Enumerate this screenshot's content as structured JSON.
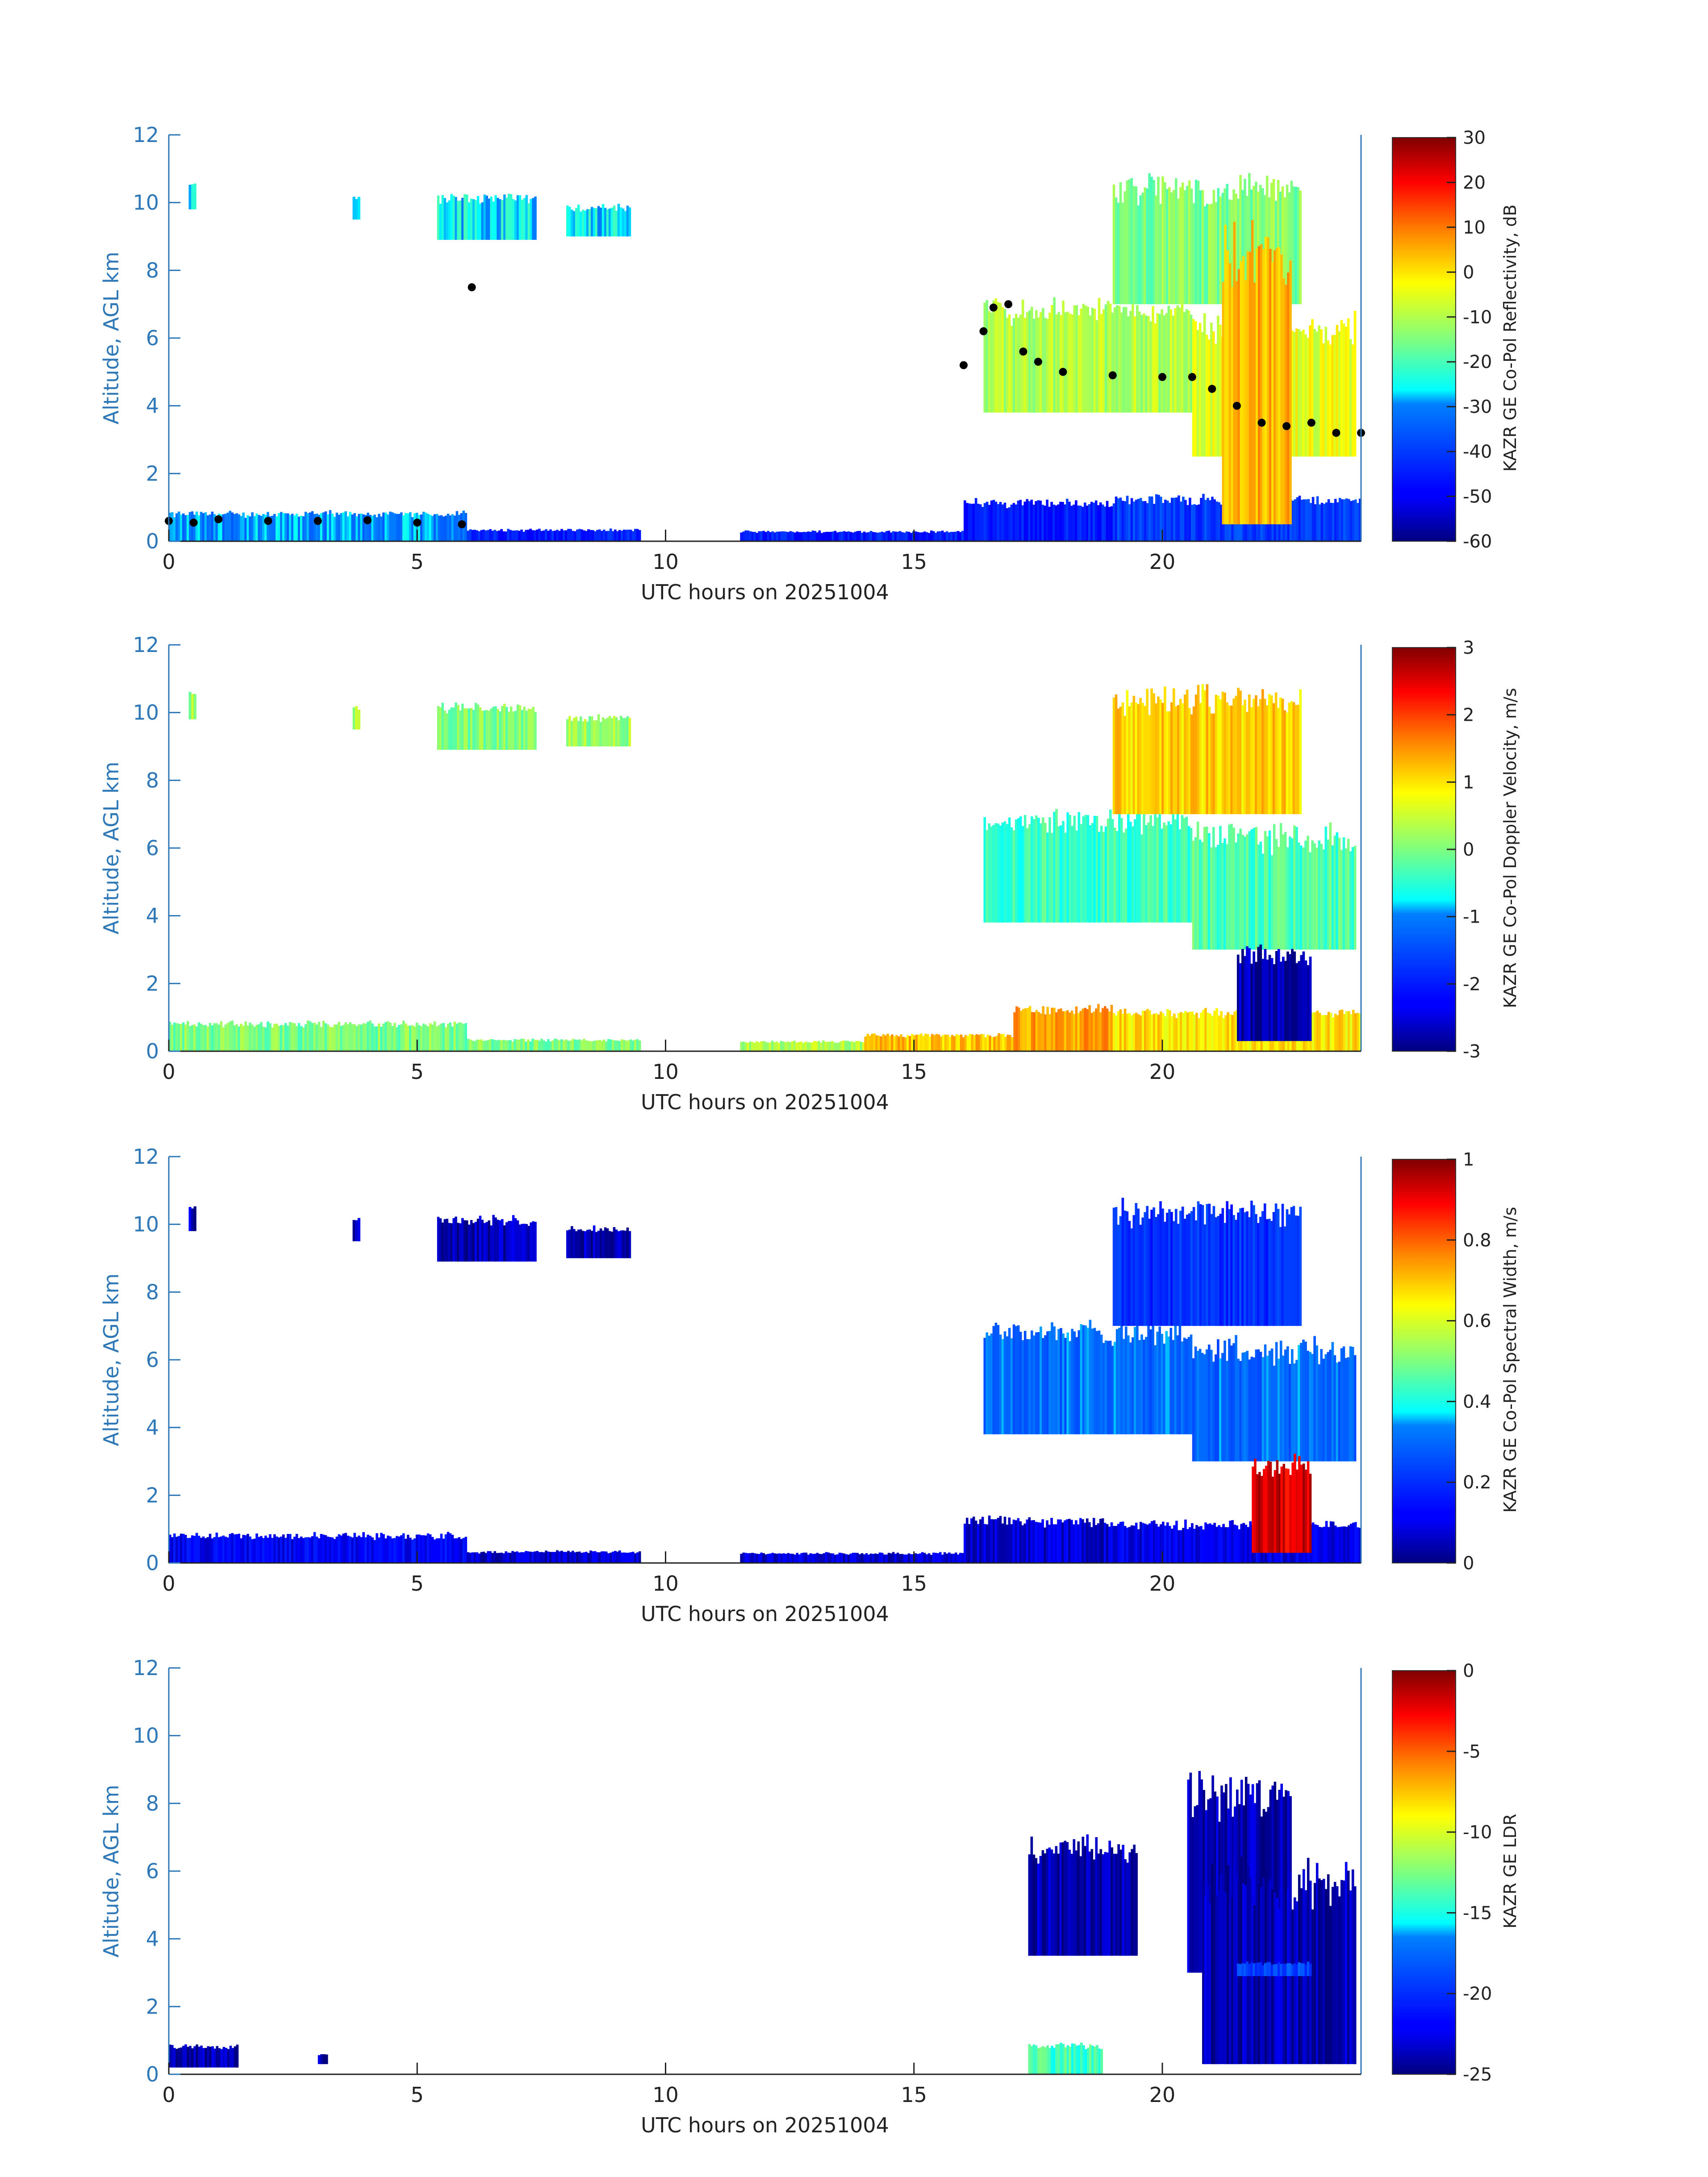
{
  "chart_data": [
    {
      "type": "heatmap",
      "variable": "reflectivity",
      "xlabel": "UTC hours on 20251004",
      "ylabel": "Altitude, AGL km",
      "xlim": [
        0,
        24
      ],
      "ylim": [
        0,
        12
      ],
      "xticks": [
        "0",
        "5",
        "10",
        "15",
        "20"
      ],
      "yticks": [
        "0",
        "2",
        "4",
        "6",
        "8",
        "10",
        "12"
      ],
      "colorbar_label": "KAZR GE Co-Pol Reflectivity, dB",
      "clim": [
        -60,
        30
      ],
      "colorbar_ticks": [
        "30",
        "20",
        "10",
        "0",
        "-10",
        "-20",
        "-30",
        "-40",
        "-50",
        "-60"
      ],
      "colormap": "jet",
      "regions": [
        {
          "x": [
            0,
            6
          ],
          "y": [
            0,
            0.85
          ],
          "value": -30
        },
        {
          "x": [
            6,
            9.5
          ],
          "y": [
            0,
            0.35
          ],
          "value": -45
        },
        {
          "x": [
            11.5,
            16
          ],
          "y": [
            0,
            0.3
          ],
          "value": -45
        },
        {
          "x": [
            16,
            19
          ],
          "y": [
            0,
            1.2
          ],
          "value": -45
        },
        {
          "x": [
            19,
            24
          ],
          "y": [
            0,
            1.3
          ],
          "value": -40
        },
        {
          "x": [
            0.4,
            0.55
          ],
          "y": [
            9.8,
            10.6
          ],
          "value": -25
        },
        {
          "x": [
            3.7,
            3.85
          ],
          "y": [
            9.5,
            10.2
          ],
          "value": -25
        },
        {
          "x": [
            5.4,
            7.4
          ],
          "y": [
            8.9,
            10.2
          ],
          "value": -25
        },
        {
          "x": [
            8.0,
            9.3
          ],
          "y": [
            9.0,
            9.9
          ],
          "value": -25
        },
        {
          "x": [
            16.4,
            20.6
          ],
          "y": [
            3.8,
            7.0
          ],
          "value": -10
        },
        {
          "x": [
            20.6,
            23.9
          ],
          "y": [
            2.5,
            6.5
          ],
          "value": -5
        },
        {
          "x": [
            19.0,
            22.8
          ],
          "y": [
            7.0,
            10.6
          ],
          "value": -15
        },
        {
          "x": [
            21.2,
            22.6
          ],
          "y": [
            0.5,
            9.0
          ],
          "value": 5
        }
      ],
      "overlay_points": [
        {
          "x": 0.0,
          "y": 0.6
        },
        {
          "x": 0.5,
          "y": 0.55
        },
        {
          "x": 1.0,
          "y": 0.65
        },
        {
          "x": 2.0,
          "y": 0.6
        },
        {
          "x": 3.0,
          "y": 0.6
        },
        {
          "x": 4.0,
          "y": 0.62
        },
        {
          "x": 5.0,
          "y": 0.55
        },
        {
          "x": 5.9,
          "y": 0.5
        },
        {
          "x": 6.1,
          "y": 7.5
        },
        {
          "x": 16.0,
          "y": 5.2
        },
        {
          "x": 16.4,
          "y": 6.2
        },
        {
          "x": 16.6,
          "y": 6.9
        },
        {
          "x": 16.9,
          "y": 7.0
        },
        {
          "x": 17.2,
          "y": 5.6
        },
        {
          "x": 17.5,
          "y": 5.3
        },
        {
          "x": 18.0,
          "y": 5.0
        },
        {
          "x": 19.0,
          "y": 4.9
        },
        {
          "x": 20.0,
          "y": 4.85
        },
        {
          "x": 20.6,
          "y": 4.85
        },
        {
          "x": 21.0,
          "y": 4.5
        },
        {
          "x": 21.5,
          "y": 4.0
        },
        {
          "x": 22.0,
          "y": 3.5
        },
        {
          "x": 22.5,
          "y": 3.4
        },
        {
          "x": 23.0,
          "y": 3.5
        },
        {
          "x": 23.5,
          "y": 3.2
        },
        {
          "x": 24.0,
          "y": 3.2
        }
      ]
    },
    {
      "type": "heatmap",
      "variable": "doppler_velocity",
      "xlabel": "UTC hours on 20251004",
      "ylabel": "Altitude, AGL km",
      "xlim": [
        0,
        24
      ],
      "ylim": [
        0,
        12
      ],
      "xticks": [
        "0",
        "5",
        "10",
        "15",
        "20"
      ],
      "yticks": [
        "0",
        "2",
        "4",
        "6",
        "8",
        "10",
        "12"
      ],
      "colorbar_label": "KAZR GE Co-Pol Doppler Velocity, m/s",
      "clim": [
        -3,
        3
      ],
      "colorbar_ticks": [
        "3",
        "2",
        "1",
        "0",
        "-1",
        "-2",
        "-3"
      ],
      "colormap": "jet",
      "regions": [
        {
          "x": [
            0,
            6
          ],
          "y": [
            0,
            0.85
          ],
          "value": 0
        },
        {
          "x": [
            6,
            9.5
          ],
          "y": [
            0,
            0.35
          ],
          "value": 0
        },
        {
          "x": [
            11.5,
            14
          ],
          "y": [
            0,
            0.3
          ],
          "value": 0.3
        },
        {
          "x": [
            14,
            17
          ],
          "y": [
            0,
            0.5
          ],
          "value": 1.2
        },
        {
          "x": [
            17,
            19
          ],
          "y": [
            0,
            1.3
          ],
          "value": 1.4
        },
        {
          "x": [
            19,
            24
          ],
          "y": [
            0,
            1.2
          ],
          "value": 1.0
        },
        {
          "x": [
            0.4,
            0.55
          ],
          "y": [
            9.8,
            10.6
          ],
          "value": 0.2
        },
        {
          "x": [
            3.7,
            3.85
          ],
          "y": [
            9.5,
            10.2
          ],
          "value": 0.2
        },
        {
          "x": [
            5.4,
            7.4
          ],
          "y": [
            8.9,
            10.2
          ],
          "value": 0
        },
        {
          "x": [
            8.0,
            9.3
          ],
          "y": [
            9.0,
            9.9
          ],
          "value": 0.2
        },
        {
          "x": [
            16.4,
            20.6
          ],
          "y": [
            3.8,
            7.0
          ],
          "value": -0.4
        },
        {
          "x": [
            20.6,
            23.9
          ],
          "y": [
            3.0,
            6.5
          ],
          "value": -0.3
        },
        {
          "x": [
            19.0,
            22.8
          ],
          "y": [
            7.0,
            10.6
          ],
          "value": 1.1
        },
        {
          "x": [
            21.5,
            23.0
          ],
          "y": [
            0.3,
            3.0
          ],
          "value": -2.8
        }
      ]
    },
    {
      "type": "heatmap",
      "variable": "spectral_width",
      "xlabel": "UTC hours on 20251004",
      "ylabel": "Altitude, AGL km",
      "xlim": [
        0,
        24
      ],
      "ylim": [
        0,
        12
      ],
      "xticks": [
        "0",
        "5",
        "10",
        "15",
        "20"
      ],
      "yticks": [
        "0",
        "2",
        "4",
        "6",
        "8",
        "10",
        "12"
      ],
      "colorbar_label": "KAZR GE Co-Pol Spectral Width, m/s",
      "clim": [
        0,
        1
      ],
      "colorbar_ticks": [
        "1",
        "0.8",
        "0.6",
        "0.4",
        "0.2",
        "0"
      ],
      "colormap": "jet",
      "regions": [
        {
          "x": [
            0,
            6
          ],
          "y": [
            0,
            0.85
          ],
          "value": 0.12
        },
        {
          "x": [
            6,
            9.5
          ],
          "y": [
            0,
            0.35
          ],
          "value": 0.08
        },
        {
          "x": [
            11.5,
            16
          ],
          "y": [
            0,
            0.3
          ],
          "value": 0.08
        },
        {
          "x": [
            16,
            19
          ],
          "y": [
            0,
            1.3
          ],
          "value": 0.08
        },
        {
          "x": [
            19,
            24
          ],
          "y": [
            0,
            1.2
          ],
          "value": 0.1
        },
        {
          "x": [
            0.4,
            0.55
          ],
          "y": [
            9.8,
            10.6
          ],
          "value": 0.05
        },
        {
          "x": [
            3.7,
            3.85
          ],
          "y": [
            9.5,
            10.2
          ],
          "value": 0.05
        },
        {
          "x": [
            5.4,
            7.4
          ],
          "y": [
            8.9,
            10.2
          ],
          "value": 0.05
        },
        {
          "x": [
            8.0,
            9.3
          ],
          "y": [
            9.0,
            9.9
          ],
          "value": 0.05
        },
        {
          "x": [
            16.4,
            20.6
          ],
          "y": [
            3.8,
            7.0
          ],
          "value": 0.3
        },
        {
          "x": [
            20.6,
            23.9
          ],
          "y": [
            3.0,
            6.5
          ],
          "value": 0.3
        },
        {
          "x": [
            19.0,
            22.8
          ],
          "y": [
            7.0,
            10.6
          ],
          "value": 0.2
        },
        {
          "x": [
            21.8,
            23.0
          ],
          "y": [
            0.3,
            3.0
          ],
          "value": 0.92
        }
      ]
    },
    {
      "type": "heatmap",
      "variable": "ldr",
      "xlabel": "UTC hours on 20251004",
      "ylabel": "Altitude, AGL km",
      "xlim": [
        0,
        24
      ],
      "ylim": [
        0,
        12
      ],
      "xticks": [
        "0",
        "5",
        "10",
        "15",
        "20"
      ],
      "yticks": [
        "0",
        "2",
        "4",
        "6",
        "8",
        "10",
        "12"
      ],
      "colorbar_label": "KAZR GE LDR",
      "clim": [
        -25,
        0
      ],
      "colorbar_ticks": [
        "0",
        "-5",
        "-10",
        "-15",
        "-20",
        "-25"
      ],
      "colormap": "jet",
      "regions": [
        {
          "x": [
            0,
            1.4
          ],
          "y": [
            0.2,
            0.85
          ],
          "value": -24
        },
        {
          "x": [
            3.0,
            3.2
          ],
          "y": [
            0.3,
            0.6
          ],
          "value": -24
        },
        {
          "x": [
            17.3,
            18.8
          ],
          "y": [
            0,
            0.9
          ],
          "value": -14
        },
        {
          "x": [
            17.3,
            19.5
          ],
          "y": [
            3.5,
            6.8
          ],
          "value": -24
        },
        {
          "x": [
            20.5,
            22.6
          ],
          "y": [
            3.0,
            8.6
          ],
          "value": -24
        },
        {
          "x": [
            20.8,
            23.9
          ],
          "y": [
            0.3,
            6.0
          ],
          "value": -24
        },
        {
          "x": [
            21.5,
            23.0
          ],
          "y": [
            2.9,
            3.3
          ],
          "value": -19
        }
      ]
    }
  ]
}
